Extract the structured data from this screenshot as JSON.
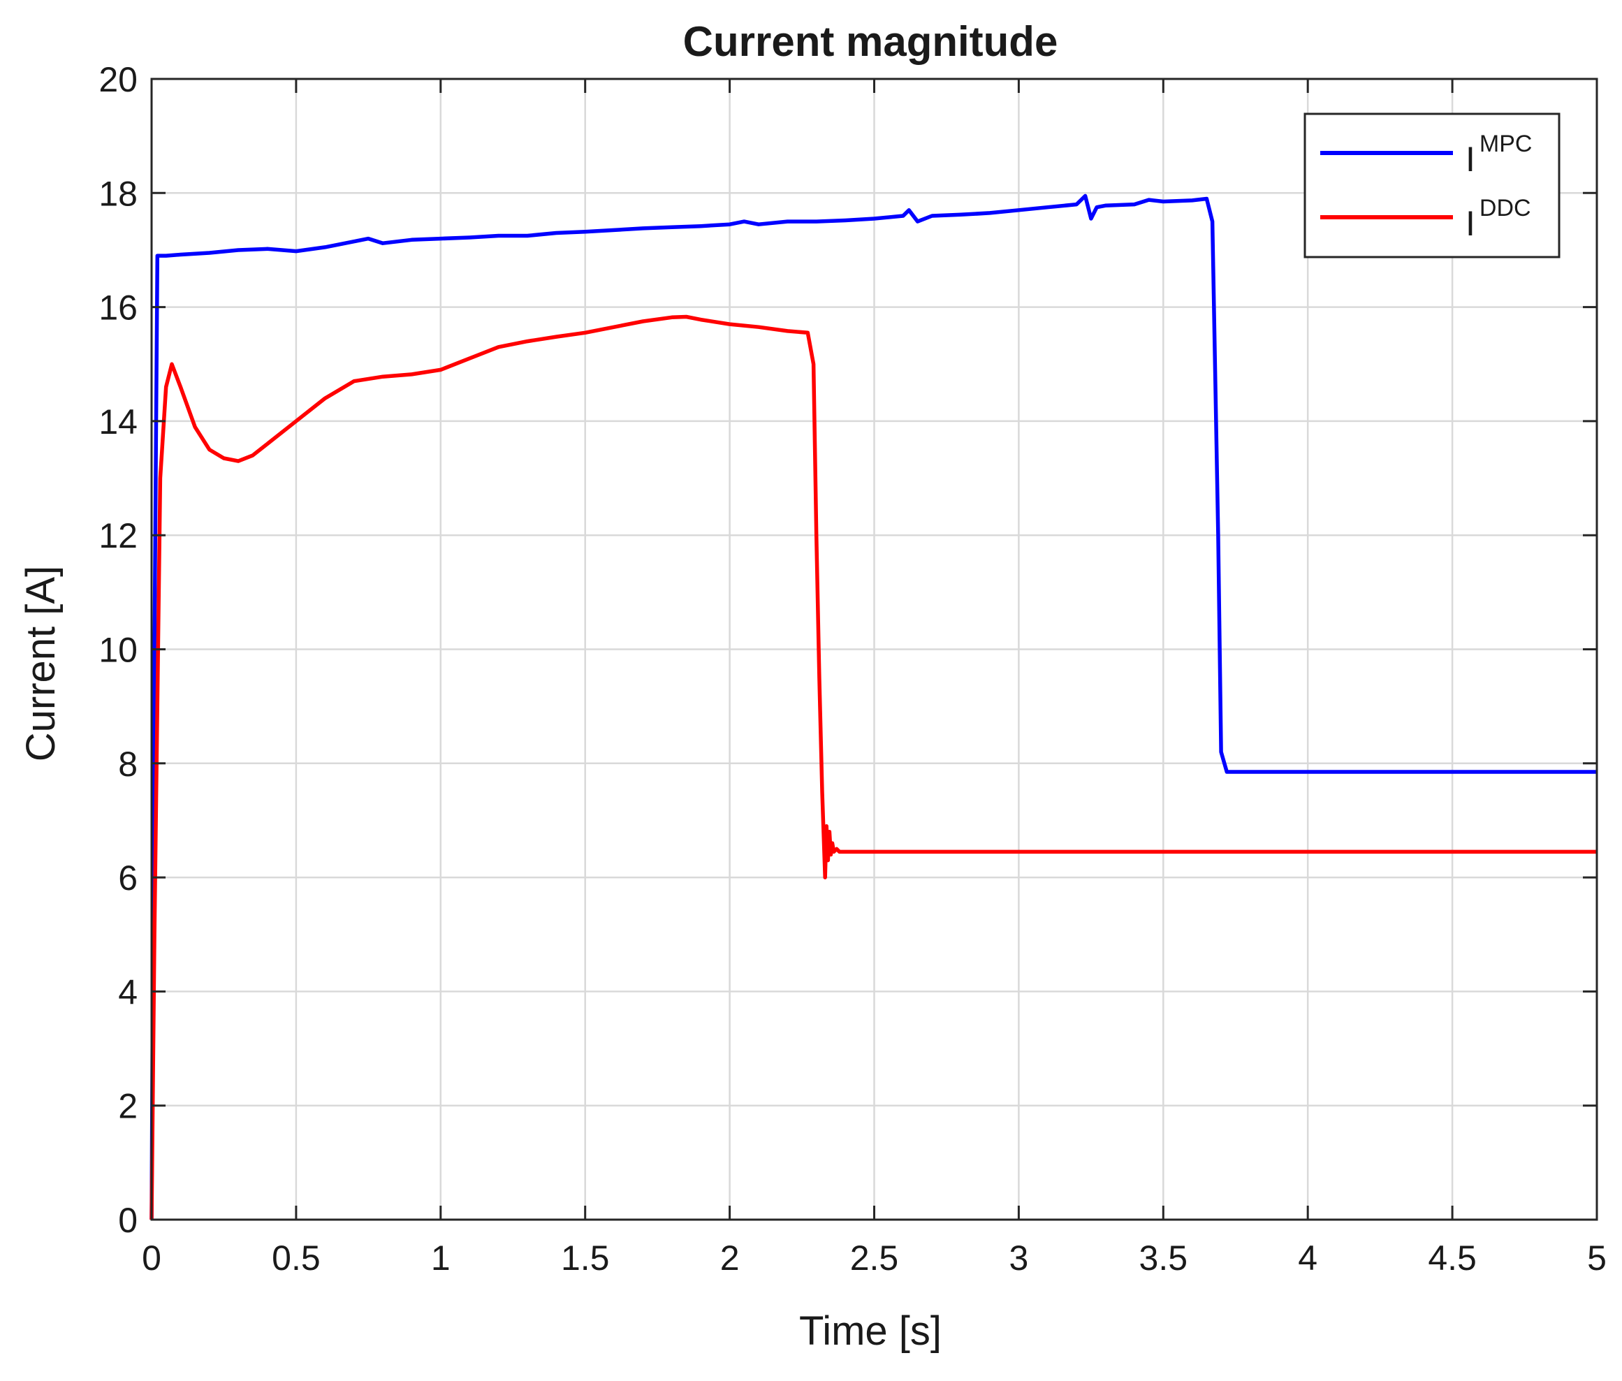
{
  "chart_data": {
    "type": "line",
    "title": "Current magnitude",
    "xlabel": "Time [s]",
    "ylabel": "Current [A]",
    "xlim": [
      0,
      5
    ],
    "ylim": [
      0,
      20
    ],
    "xticks": [
      0,
      0.5,
      1,
      1.5,
      2,
      2.5,
      3,
      3.5,
      4,
      4.5,
      5
    ],
    "xtick_labels": [
      "0",
      "0.5",
      "1",
      "1.5",
      "2",
      "2.5",
      "3",
      "3.5",
      "4",
      "4.5",
      "5"
    ],
    "yticks": [
      0,
      2,
      4,
      6,
      8,
      10,
      12,
      14,
      16,
      18,
      20
    ],
    "ytick_labels": [
      "0",
      "2",
      "4",
      "6",
      "8",
      "10",
      "12",
      "14",
      "16",
      "18",
      "20"
    ],
    "grid": true,
    "legend_position": "top-right",
    "series": [
      {
        "name": "I^MPC",
        "label_base": "I",
        "label_sup": "MPC",
        "color": "#0000ff",
        "x": [
          0,
          0.01,
          0.02,
          0.05,
          0.1,
          0.2,
          0.3,
          0.4,
          0.5,
          0.6,
          0.7,
          0.75,
          0.8,
          0.9,
          1.0,
          1.1,
          1.2,
          1.3,
          1.4,
          1.5,
          1.6,
          1.7,
          1.8,
          1.9,
          2.0,
          2.05,
          2.1,
          2.2,
          2.3,
          2.4,
          2.5,
          2.6,
          2.62,
          2.65,
          2.7,
          2.8,
          2.9,
          3.0,
          3.1,
          3.2,
          3.23,
          3.25,
          3.27,
          3.3,
          3.4,
          3.45,
          3.5,
          3.6,
          3.65,
          3.67,
          3.69,
          3.7,
          3.72,
          3.75,
          3.8,
          4.0,
          4.2,
          4.5,
          4.8,
          5.0
        ],
        "y": [
          0,
          10,
          16.9,
          16.9,
          16.92,
          16.95,
          17.0,
          17.02,
          16.98,
          17.05,
          17.15,
          17.2,
          17.12,
          17.18,
          17.2,
          17.22,
          17.25,
          17.25,
          17.3,
          17.32,
          17.35,
          17.38,
          17.4,
          17.42,
          17.45,
          17.5,
          17.45,
          17.5,
          17.5,
          17.52,
          17.55,
          17.6,
          17.7,
          17.5,
          17.6,
          17.62,
          17.65,
          17.7,
          17.75,
          17.8,
          17.95,
          17.55,
          17.75,
          17.78,
          17.8,
          17.88,
          17.85,
          17.87,
          17.9,
          17.5,
          12.0,
          8.2,
          7.85,
          7.85,
          7.85,
          7.85,
          7.85,
          7.85,
          7.85,
          7.85
        ]
      },
      {
        "name": "I^DDC",
        "label_base": "I",
        "label_sup": "DDC",
        "color": "#ff0000",
        "x": [
          0,
          0.01,
          0.03,
          0.05,
          0.07,
          0.1,
          0.15,
          0.2,
          0.25,
          0.3,
          0.35,
          0.4,
          0.5,
          0.6,
          0.7,
          0.8,
          0.9,
          1.0,
          1.1,
          1.2,
          1.3,
          1.4,
          1.5,
          1.6,
          1.7,
          1.8,
          1.85,
          1.9,
          2.0,
          2.1,
          2.2,
          2.27,
          2.29,
          2.3,
          2.31,
          2.32,
          2.33,
          2.335,
          2.34,
          2.345,
          2.35,
          2.355,
          2.36,
          2.37,
          2.38,
          2.4,
          2.5,
          3.0,
          3.5,
          4.0,
          4.5,
          5.0
        ],
        "y": [
          0,
          5,
          13.0,
          14.6,
          15.0,
          14.6,
          13.9,
          13.5,
          13.35,
          13.3,
          13.4,
          13.6,
          14.0,
          14.4,
          14.7,
          14.78,
          14.82,
          14.9,
          15.1,
          15.3,
          15.4,
          15.48,
          15.55,
          15.65,
          15.75,
          15.82,
          15.83,
          15.78,
          15.7,
          15.65,
          15.58,
          15.55,
          15.0,
          12.0,
          9.5,
          7.5,
          6.0,
          6.9,
          6.3,
          6.8,
          6.4,
          6.6,
          6.45,
          6.5,
          6.45,
          6.45,
          6.45,
          6.45,
          6.45,
          6.45,
          6.45,
          6.45
        ]
      }
    ]
  }
}
